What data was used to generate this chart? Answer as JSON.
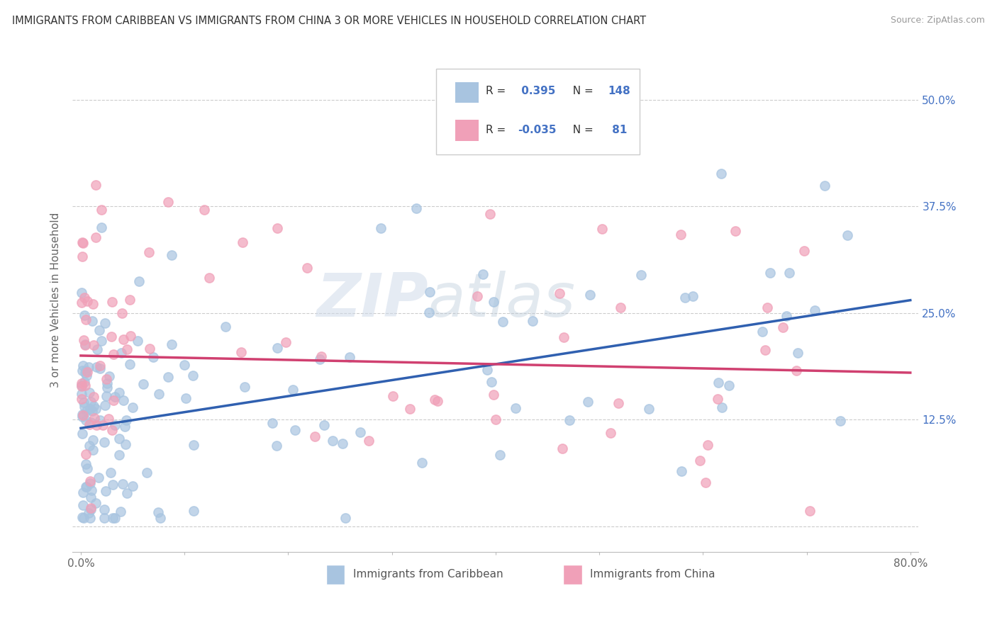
{
  "title": "IMMIGRANTS FROM CARIBBEAN VS IMMIGRANTS FROM CHINA 3 OR MORE VEHICLES IN HOUSEHOLD CORRELATION CHART",
  "source": "Source: ZipAtlas.com",
  "ylabel": "3 or more Vehicles in Household",
  "xlim": [
    0.0,
    0.8
  ],
  "ylim": [
    -0.03,
    0.56
  ],
  "x_ticks": [
    0.0,
    0.1,
    0.2,
    0.3,
    0.4,
    0.5,
    0.6,
    0.7,
    0.8
  ],
  "x_tick_labels": [
    "0.0%",
    "",
    "",
    "",
    "",
    "",
    "",
    "",
    "80.0%"
  ],
  "y_ticks": [
    0.0,
    0.125,
    0.25,
    0.375,
    0.5
  ],
  "y_tick_labels_right": [
    "",
    "12.5%",
    "25.0%",
    "37.5%",
    "50.0%"
  ],
  "r_caribbean": 0.395,
  "n_caribbean": 148,
  "r_china": -0.035,
  "n_china": 81,
  "color_caribbean": "#a8c4e0",
  "color_china": "#f0a0b8",
  "line_color_caribbean": "#3060b0",
  "line_color_china": "#d04070",
  "line_color_values": "#4472c4",
  "watermark_zip": "ZIP",
  "watermark_atlas": "atlas",
  "carib_line_y0": 0.115,
  "carib_line_y1": 0.265,
  "china_line_y0": 0.2,
  "china_line_y1": 0.18,
  "legend_r_color": "#4472c4"
}
